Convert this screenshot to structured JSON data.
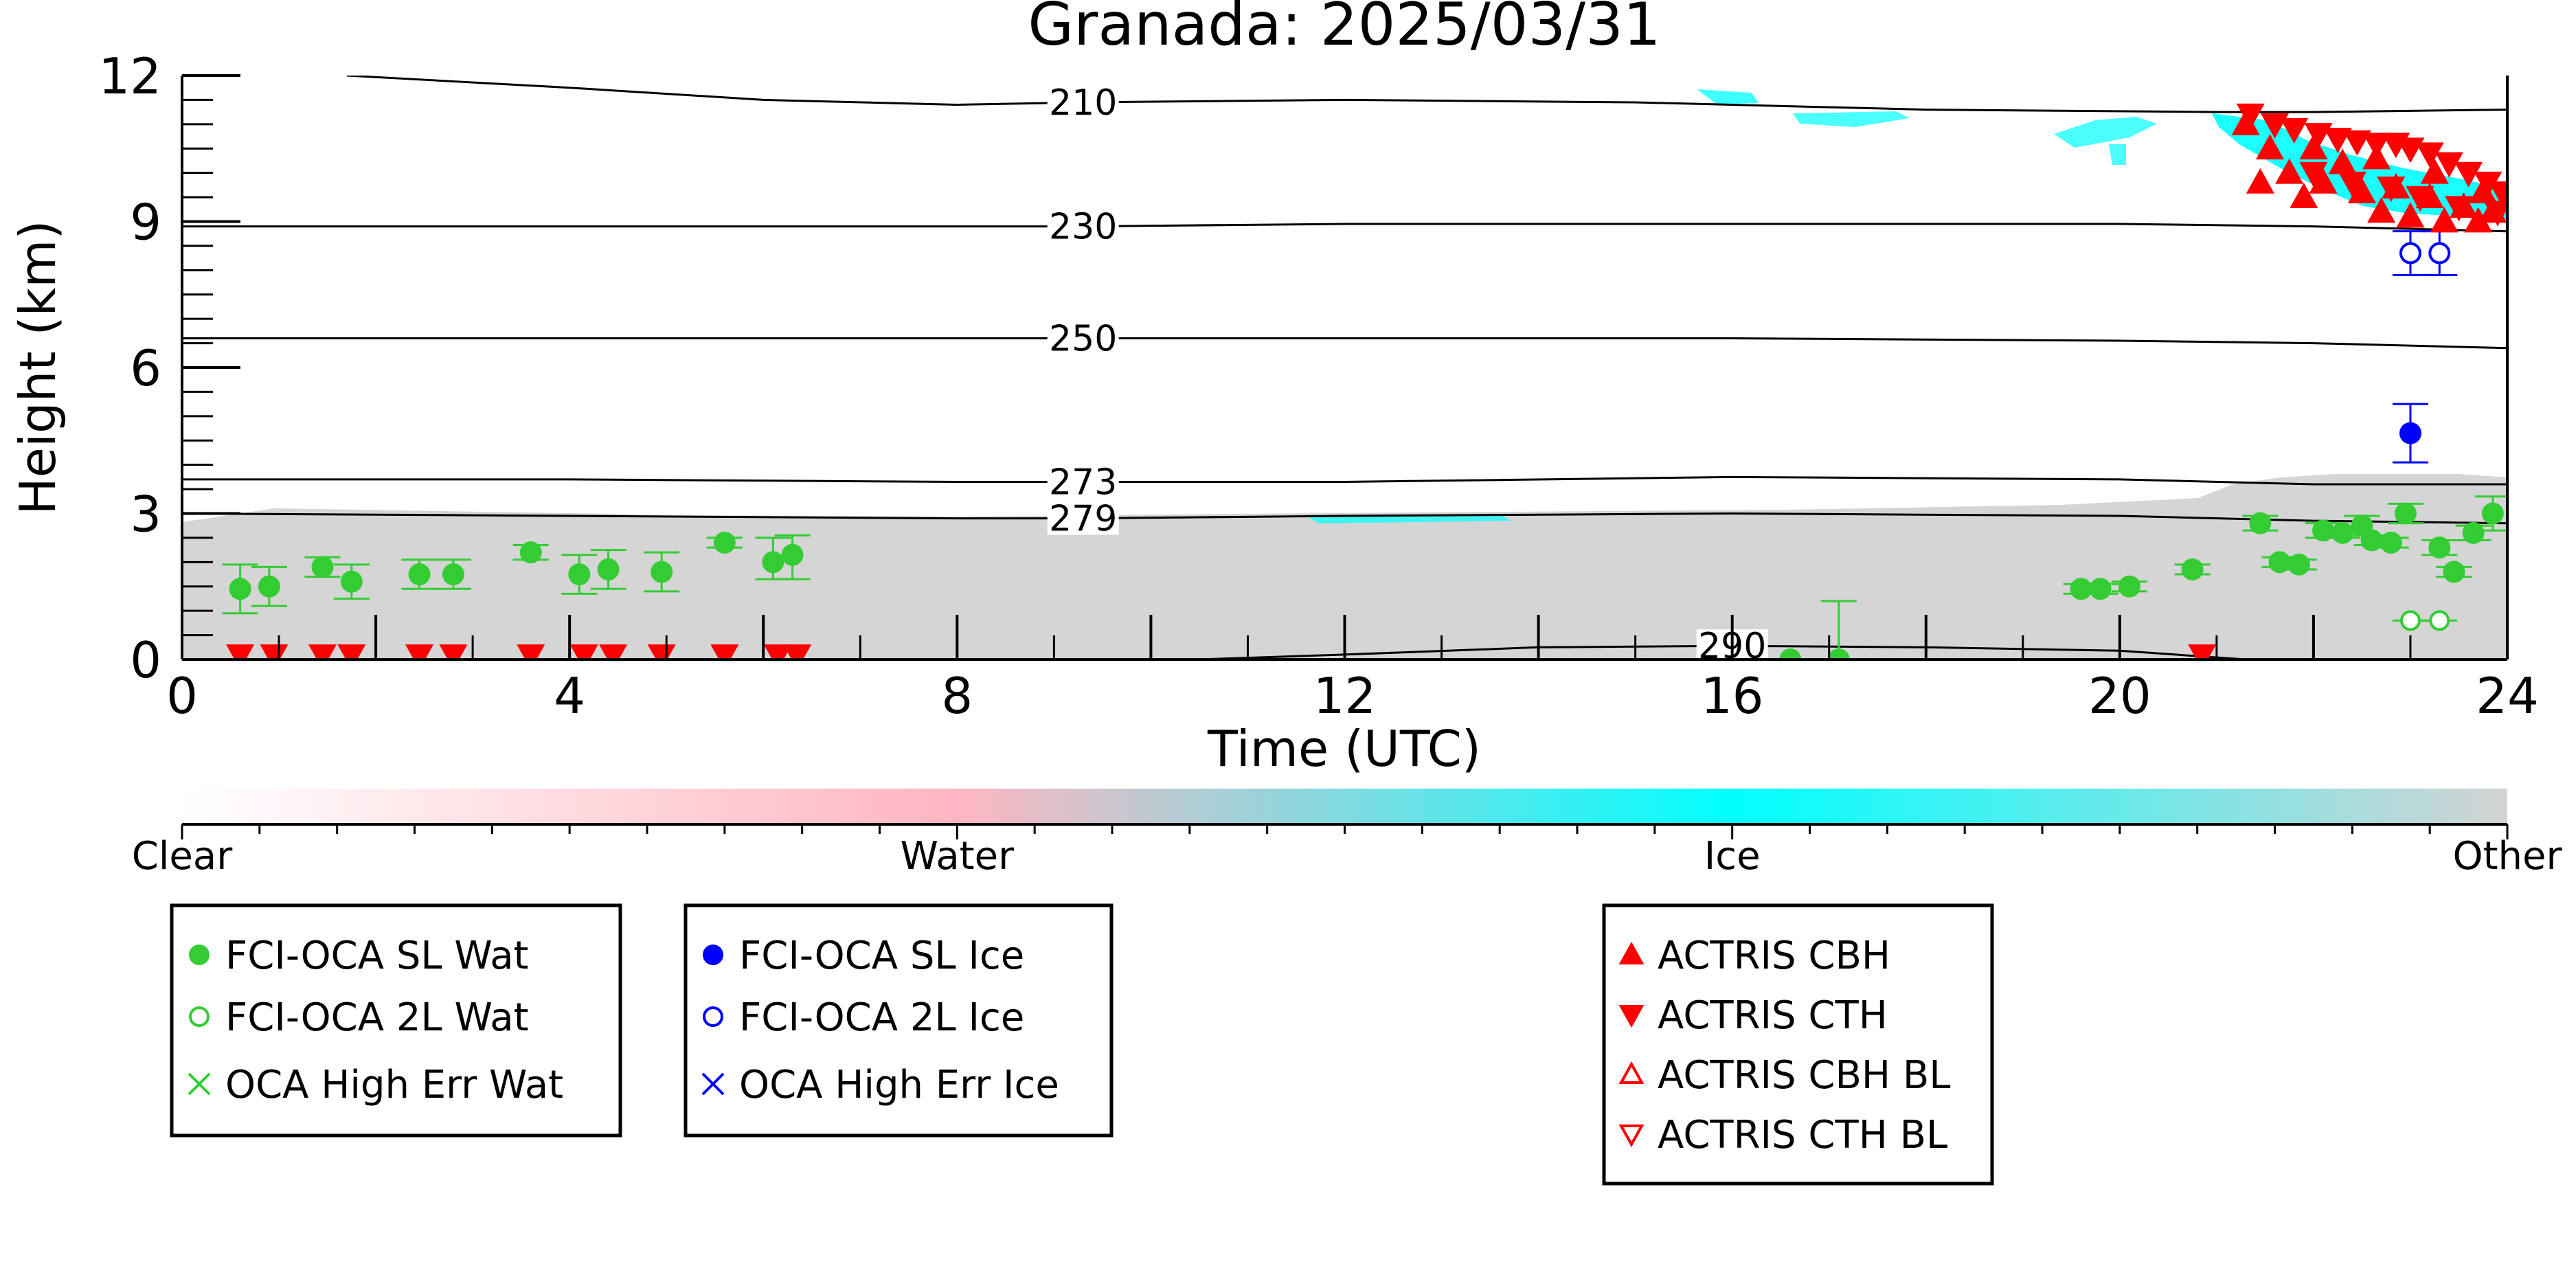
{
  "chart_data": {
    "type": "scatter",
    "title": "Granada: 2025/03/31",
    "xlabel": "Time (UTC)",
    "ylabel": "Height (km)",
    "xlim": [
      0,
      24
    ],
    "ylim": [
      0,
      12
    ],
    "x_ticks": [
      0,
      4,
      8,
      12,
      16,
      20,
      24
    ],
    "y_ticks": [
      0,
      3,
      6,
      9,
      12
    ],
    "grid": false,
    "isotherms": [
      {
        "label": "210",
        "label_x": 9.3,
        "points": [
          [
            1.7,
            12.0
          ],
          [
            4,
            11.75
          ],
          [
            6,
            11.5
          ],
          [
            8,
            11.4
          ],
          [
            9.3,
            11.45
          ],
          [
            12,
            11.5
          ],
          [
            15,
            11.45
          ],
          [
            18,
            11.3
          ],
          [
            21,
            11.25
          ],
          [
            22,
            11.25
          ],
          [
            24,
            11.3
          ]
        ]
      },
      {
        "label": "230",
        "label_x": 9.3,
        "points": [
          [
            0,
            8.9
          ],
          [
            4,
            8.9
          ],
          [
            8,
            8.9
          ],
          [
            9.3,
            8.9
          ],
          [
            12,
            8.95
          ],
          [
            16,
            8.95
          ],
          [
            20,
            8.95
          ],
          [
            22,
            8.9
          ],
          [
            24,
            8.8
          ]
        ]
      },
      {
        "label": "250",
        "label_x": 9.3,
        "points": [
          [
            0,
            6.6
          ],
          [
            4,
            6.6
          ],
          [
            8,
            6.6
          ],
          [
            9.3,
            6.6
          ],
          [
            12,
            6.6
          ],
          [
            16,
            6.6
          ],
          [
            20,
            6.55
          ],
          [
            22,
            6.5
          ],
          [
            24,
            6.4
          ]
        ]
      },
      {
        "label": "273",
        "label_x": 9.3,
        "points": [
          [
            0,
            3.7
          ],
          [
            4,
            3.7
          ],
          [
            8,
            3.65
          ],
          [
            9.3,
            3.65
          ],
          [
            12,
            3.65
          ],
          [
            16,
            3.75
          ],
          [
            20,
            3.7
          ],
          [
            22,
            3.6
          ],
          [
            24,
            3.6
          ]
        ]
      },
      {
        "label": "279",
        "label_x": 9.3,
        "points": [
          [
            0,
            3.0
          ],
          [
            4,
            2.95
          ],
          [
            8,
            2.9
          ],
          [
            9.3,
            2.9
          ],
          [
            12,
            2.95
          ],
          [
            16,
            3.0
          ],
          [
            20,
            2.95
          ],
          [
            22,
            2.85
          ],
          [
            24,
            2.8
          ]
        ]
      },
      {
        "label": "290",
        "label_x": 16.0,
        "points": [
          [
            10.5,
            0.0
          ],
          [
            12,
            0.1
          ],
          [
            14,
            0.25
          ],
          [
            16,
            0.28
          ],
          [
            18,
            0.25
          ],
          [
            20,
            0.18
          ],
          [
            21.3,
            0.0
          ]
        ]
      }
    ],
    "fci_oca_sl_wat": {
      "name": "FCI-OCA SL Wat",
      "points": [
        [
          0.6,
          1.45
        ],
        [
          0.9,
          1.5
        ],
        [
          1.45,
          1.9
        ],
        [
          1.75,
          1.6
        ],
        [
          2.45,
          1.75
        ],
        [
          2.8,
          1.75
        ],
        [
          3.6,
          2.2
        ],
        [
          4.1,
          1.75
        ],
        [
          4.4,
          1.85
        ],
        [
          4.95,
          1.8
        ],
        [
          5.6,
          2.4
        ],
        [
          6.1,
          2.0
        ],
        [
          6.3,
          2.15
        ],
        [
          16.6,
          0.0
        ],
        [
          17.1,
          0.0
        ],
        [
          19.6,
          1.45
        ],
        [
          19.8,
          1.45
        ],
        [
          20.1,
          1.5
        ],
        [
          20.75,
          1.85
        ],
        [
          21.45,
          2.8
        ],
        [
          21.65,
          2.0
        ],
        [
          21.85,
          1.95
        ],
        [
          22.1,
          2.65
        ],
        [
          22.3,
          2.6
        ],
        [
          22.5,
          2.75
        ],
        [
          22.6,
          2.45
        ],
        [
          22.8,
          2.4
        ],
        [
          22.95,
          3.0
        ],
        [
          23.3,
          2.3
        ],
        [
          23.45,
          1.8
        ],
        [
          23.65,
          2.6
        ],
        [
          23.85,
          3.0
        ]
      ],
      "err_low": [
        0.5,
        0.4,
        0.2,
        0.35,
        0.3,
        0.3,
        0.15,
        0.4,
        0.4,
        0.4,
        0.1,
        0.35,
        0.5,
        0.0,
        0.0,
        0.1,
        0.1,
        0.1,
        0.1,
        0.15,
        0.1,
        0.1,
        0.15,
        0.1,
        0.2,
        0.1,
        0.1,
        0.2,
        0.15,
        0.1,
        0.15,
        0.35
      ],
      "err_high": [
        0.5,
        0.4,
        0.2,
        0.35,
        0.3,
        0.3,
        0.15,
        0.4,
        0.4,
        0.4,
        0.1,
        0.5,
        0.4,
        0.0,
        1.2,
        0.1,
        0.1,
        0.1,
        0.1,
        0.15,
        0.1,
        0.1,
        0.15,
        0.1,
        0.2,
        0.1,
        0.1,
        0.2,
        0.15,
        0.1,
        0.15,
        0.35
      ]
    },
    "fci_oca_2l_wat": {
      "name": "FCI-OCA 2L Wat",
      "points": [
        [
          23.0,
          0.8
        ],
        [
          23.3,
          0.8
        ]
      ]
    },
    "fci_oca_sl_ice": {
      "name": "FCI-OCA SL Ice",
      "points": [
        [
          23.0,
          4.65
        ]
      ],
      "err_low": [
        0.6
      ],
      "err_high": [
        0.6
      ]
    },
    "fci_oca_2l_ice": {
      "name": "FCI-OCA 2L Ice",
      "points": [
        [
          23.0,
          8.35
        ],
        [
          23.3,
          8.35
        ]
      ],
      "err_low": [
        0.45,
        0.45
      ],
      "err_high": [
        0.45,
        0.45
      ]
    },
    "actris_cbh": {
      "name": "ACTRIS CBH",
      "points": [
        [
          21.3,
          11.0
        ],
        [
          21.55,
          10.5
        ],
        [
          21.75,
          10.0
        ],
        [
          21.9,
          9.5
        ],
        [
          22.1,
          9.8
        ],
        [
          22.3,
          10.2
        ],
        [
          22.5,
          9.6
        ],
        [
          22.7,
          9.2
        ],
        [
          22.85,
          9.7
        ],
        [
          23.0,
          9.1
        ],
        [
          23.2,
          9.5
        ],
        [
          23.35,
          9.0
        ],
        [
          23.55,
          9.3
        ],
        [
          23.7,
          9.0
        ],
        [
          23.85,
          9.2
        ],
        [
          21.45,
          9.8
        ],
        [
          22.0,
          10.5
        ],
        [
          22.65,
          10.3
        ],
        [
          23.25,
          10.0
        ],
        [
          23.75,
          9.6
        ]
      ]
    },
    "actris_cth": {
      "name": "ACTRIS CTH",
      "points": [
        [
          21.35,
          11.2
        ],
        [
          21.6,
          11.0
        ],
        [
          21.8,
          10.9
        ],
        [
          22.05,
          10.8
        ],
        [
          22.25,
          10.7
        ],
        [
          22.45,
          10.65
        ],
        [
          22.65,
          10.6
        ],
        [
          22.85,
          10.6
        ],
        [
          23.0,
          10.5
        ],
        [
          23.2,
          10.4
        ],
        [
          23.4,
          10.2
        ],
        [
          23.6,
          10.0
        ],
        [
          23.8,
          9.8
        ],
        [
          23.95,
          9.6
        ],
        [
          22.0,
          10.0
        ],
        [
          22.4,
          9.8
        ],
        [
          22.8,
          9.7
        ],
        [
          23.1,
          9.5
        ],
        [
          23.5,
          9.3
        ],
        [
          23.9,
          9.2
        ]
      ],
      "surface_x": [
        0.6,
        0.95,
        1.45,
        1.75,
        2.45,
        2.8,
        3.6,
        4.15,
        4.45,
        4.95,
        5.6,
        6.15,
        6.35,
        20.85
      ]
    },
    "cloud_mask_legend": {
      "labels": [
        "Clear",
        "Water",
        "Ice",
        "Other"
      ],
      "colors": [
        "#ffffff",
        "#ffb6c1",
        "#00ffff",
        "#d3d3d3"
      ]
    },
    "legend_boxes": [
      {
        "items": [
          {
            "label": "FCI-OCA SL Wat",
            "marker": "filled-circle",
            "color": "#33cc33"
          },
          {
            "label": "FCI-OCA 2L Wat",
            "marker": "open-circle",
            "color": "#33cc33"
          },
          {
            "label": "OCA High Err Wat",
            "marker": "x",
            "color": "#33cc33"
          }
        ]
      },
      {
        "items": [
          {
            "label": "FCI-OCA SL Ice",
            "marker": "filled-circle",
            "color": "#0000ff"
          },
          {
            "label": "FCI-OCA 2L Ice",
            "marker": "open-circle",
            "color": "#0000ff"
          },
          {
            "label": "OCA High Err Ice",
            "marker": "x",
            "color": "#0000ff"
          }
        ]
      },
      {
        "items": [
          {
            "label": "ACTRIS CBH",
            "marker": "filled-triangle-up",
            "color": "#ff0000"
          },
          {
            "label": "ACTRIS CTH",
            "marker": "filled-triangle-down",
            "color": "#ff0000"
          },
          {
            "label": "ACTRIS CBH BL",
            "marker": "open-triangle-up",
            "color": "#ff0000"
          },
          {
            "label": "ACTRIS CTH BL",
            "marker": "open-triangle-down",
            "color": "#ff0000"
          }
        ]
      }
    ]
  }
}
